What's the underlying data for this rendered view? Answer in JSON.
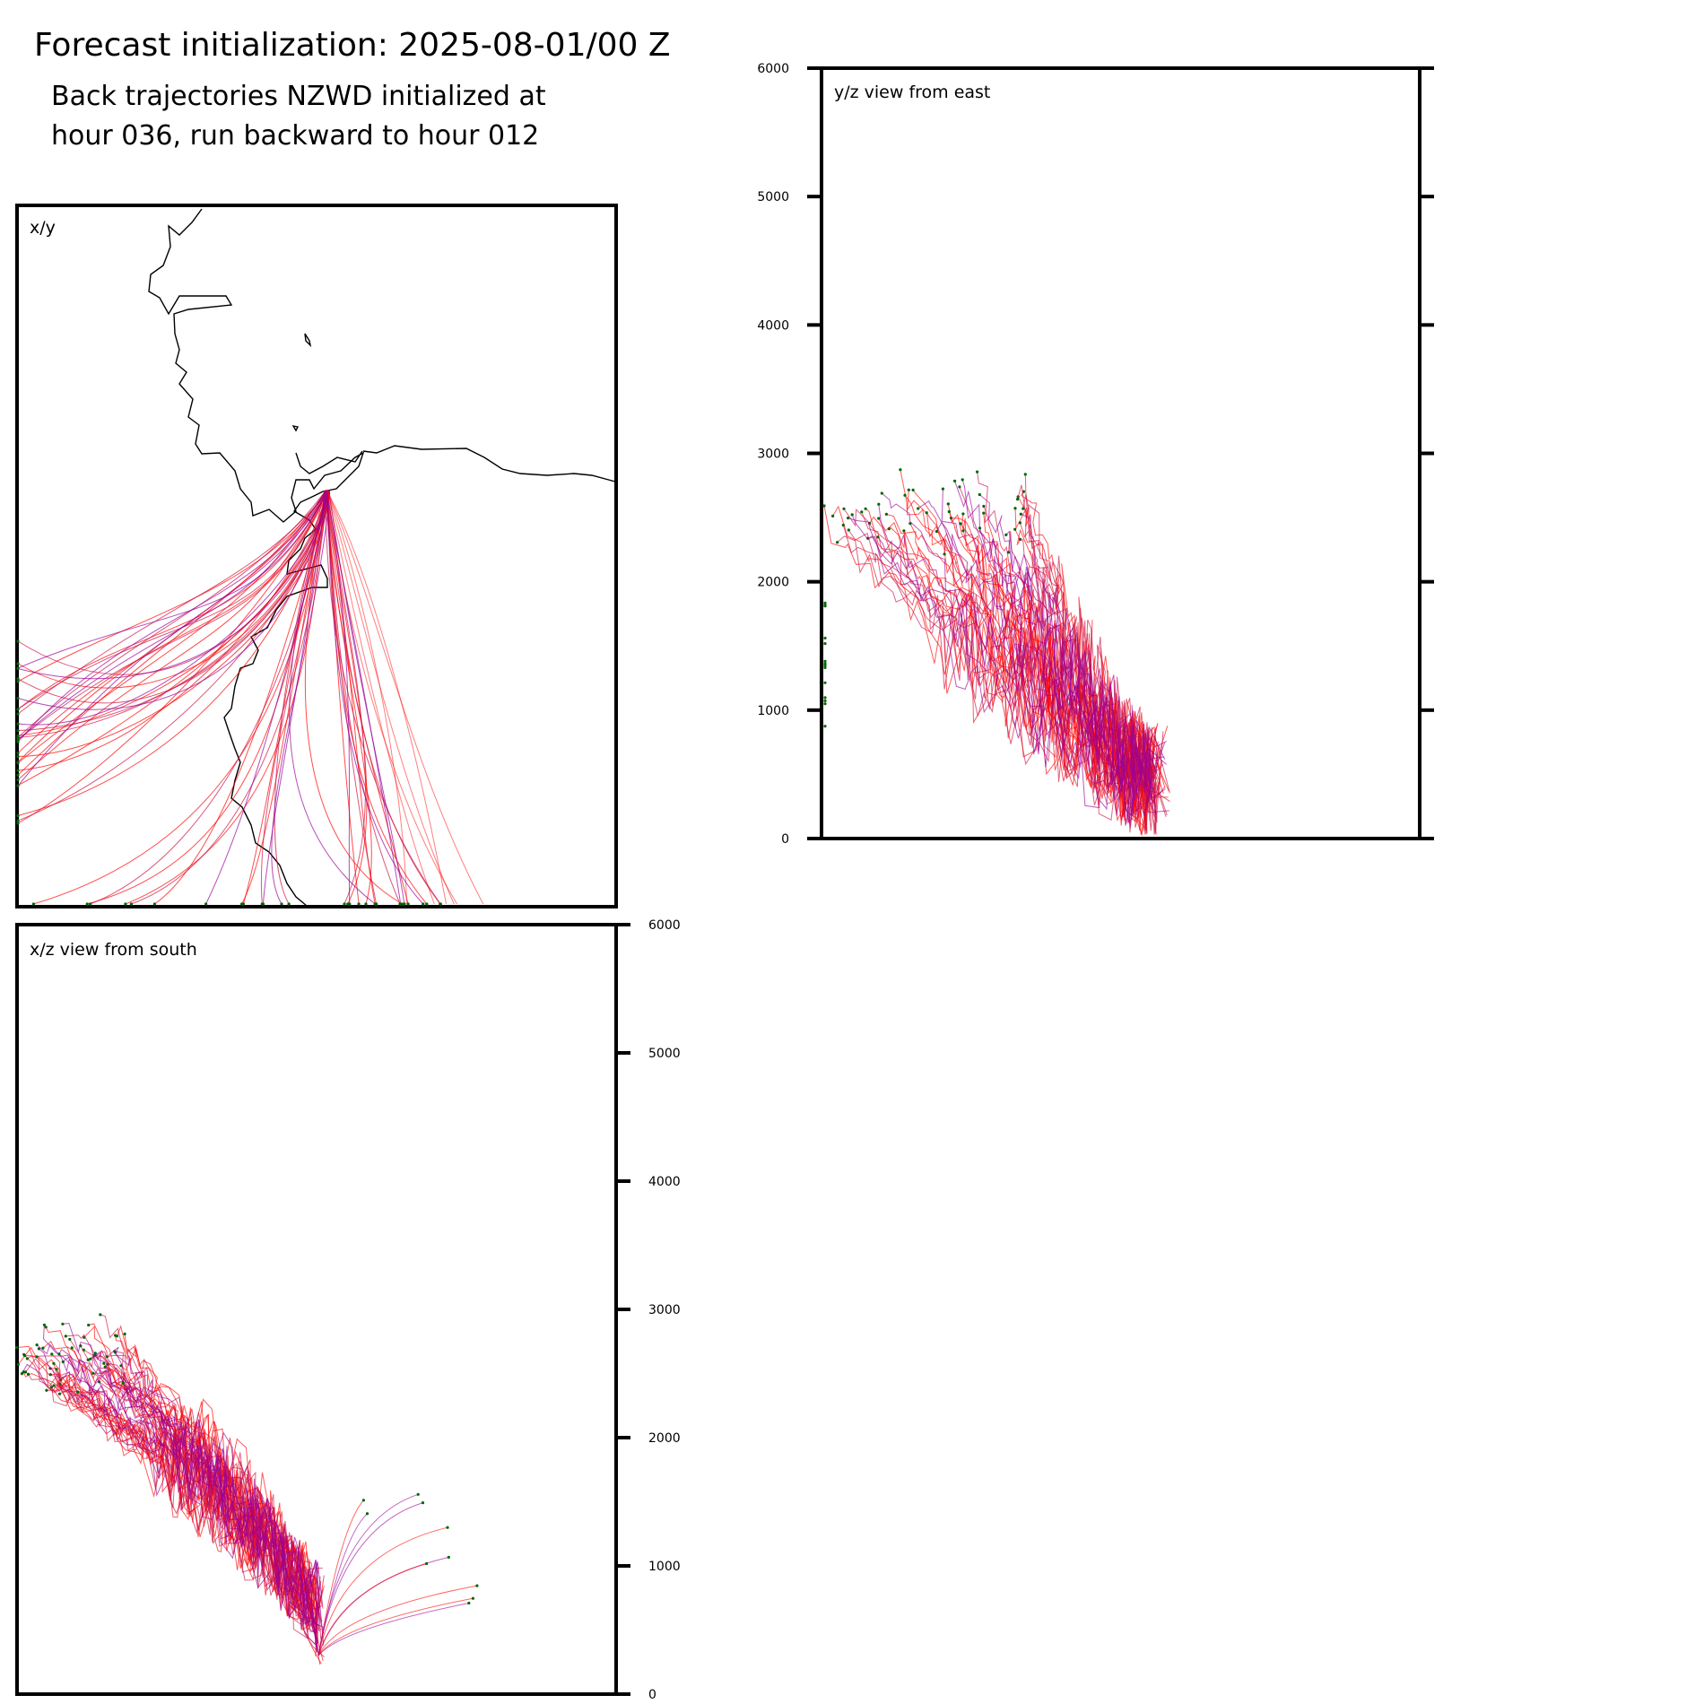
{
  "header": {
    "title": "Forecast initialization: 2025-08-01/00 Z",
    "subtitle_line1": "Back trajectories NZWD initialized at",
    "subtitle_line2": "hour 036, run backward to hour 012"
  },
  "colors": {
    "trajectory_late": "#ff0000",
    "trajectory_mid": "#cc1144",
    "trajectory_early": "#990099",
    "endpoint": "#006600",
    "coastline": "#000000"
  },
  "chart_data": [
    {
      "type": "line",
      "panel": "x/y",
      "title": "x/y",
      "description_of_series": "back trajectory ground tracks",
      "coastline": true
    },
    {
      "type": "line",
      "panel": "x/z view from south",
      "title": "x/z view from south",
      "xlabel": "",
      "ylabel": "",
      "yticks": [
        0,
        1000,
        2000,
        3000,
        4000,
        5000,
        6000
      ],
      "ylim": [
        0,
        6000
      ]
    },
    {
      "type": "line",
      "panel": "y/z view from east",
      "title": "y/z view from east",
      "xlabel": "",
      "ylabel": "",
      "yticks": [
        0,
        1000,
        2000,
        3000,
        4000,
        5000,
        6000
      ],
      "ylim": [
        0,
        6000
      ]
    }
  ]
}
